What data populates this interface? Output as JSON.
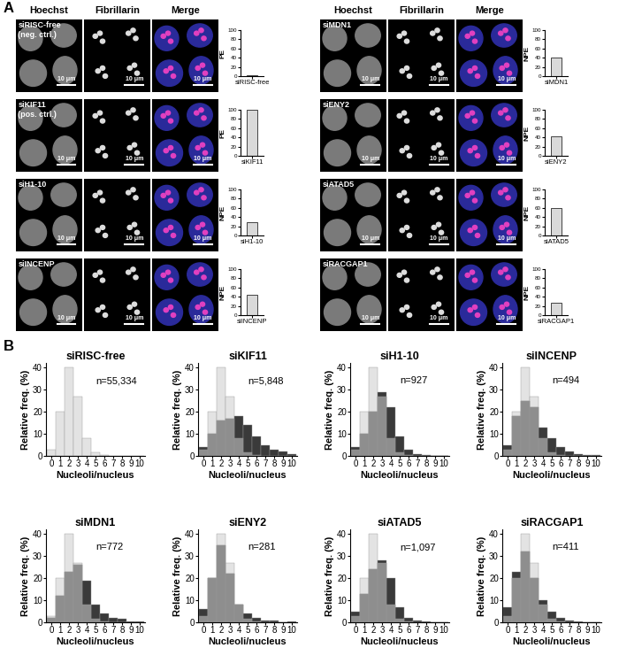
{
  "panel_labels": [
    "A",
    "B"
  ],
  "column_headers": [
    "Hoechst",
    "Fibrillarin",
    "Merge"
  ],
  "scale_bar": "10 μm",
  "image_rows": [
    "siRISC-free\n(neg. ctrl.)",
    "siKIF11\n(pos. ctrl.)",
    "siH1-10",
    "siINCENP",
    "siMDN1",
    "siENY2",
    "siATAD5",
    "siRACGAP1"
  ],
  "chart_data": [
    {
      "type": "bar",
      "categories": [
        "siRISC-free"
      ],
      "values": [
        1
      ],
      "ylabel": "PE",
      "ylim": [
        0,
        100
      ],
      "yticks": [
        0,
        20,
        40,
        60,
        80,
        100
      ],
      "color": "#d9d9d9"
    },
    {
      "type": "bar",
      "categories": [
        "siKIF11"
      ],
      "values": [
        100
      ],
      "ylabel": "PE",
      "ylim": [
        0,
        100
      ],
      "yticks": [
        0,
        20,
        40,
        60,
        80,
        100
      ],
      "color": "#d9d9d9"
    },
    {
      "type": "bar",
      "categories": [
        "siH1-10"
      ],
      "values": [
        28
      ],
      "ylabel": "NPE",
      "ylim": [
        0,
        100
      ],
      "yticks": [
        0,
        20,
        40,
        60,
        80,
        100
      ],
      "color": "#d9d9d9"
    },
    {
      "type": "bar",
      "categories": [
        "siINCENP"
      ],
      "values": [
        45
      ],
      "ylabel": "NPE",
      "ylim": [
        0,
        100
      ],
      "yticks": [
        0,
        20,
        40,
        60,
        80,
        100
      ],
      "color": "#d9d9d9"
    },
    {
      "type": "bar",
      "categories": [
        "siMDN1"
      ],
      "values": [
        40
      ],
      "ylabel": "NPE",
      "ylim": [
        0,
        100
      ],
      "yticks": [
        0,
        20,
        40,
        60,
        80,
        100
      ],
      "color": "#d9d9d9"
    },
    {
      "type": "bar",
      "categories": [
        "siENY2"
      ],
      "values": [
        42
      ],
      "ylabel": "NPE",
      "ylim": [
        0,
        100
      ],
      "yticks": [
        0,
        20,
        40,
        60,
        80,
        100
      ],
      "color": "#d9d9d9"
    },
    {
      "type": "bar",
      "categories": [
        "siATAD5"
      ],
      "values": [
        60
      ],
      "ylabel": "NPE",
      "ylim": [
        0,
        100
      ],
      "yticks": [
        0,
        20,
        40,
        60,
        80,
        100
      ],
      "color": "#d9d9d9"
    },
    {
      "type": "bar",
      "categories": [
        "siRACGAP1"
      ],
      "values": [
        27
      ],
      "ylabel": "NPE",
      "ylim": [
        0,
        100
      ],
      "yticks": [
        0,
        20,
        40,
        60,
        80,
        100
      ],
      "color": "#d9d9d9"
    },
    {
      "type": "bar",
      "title": "siRISC-free",
      "annotation": "n=55,334",
      "xlabel": "Nucleoli/nucleus",
      "ylabel": "Relative freq. (%)",
      "categories": [
        "0",
        "1",
        "2",
        "3",
        "4",
        "5",
        "6",
        "7",
        "8",
        "9",
        "10"
      ],
      "ylim": [
        0,
        42
      ],
      "yticks": [
        0,
        10,
        20,
        30,
        40
      ],
      "series": [
        {
          "name": "siRISC-free",
          "color": "#e3e3e3",
          "values": [
            3,
            20,
            40,
            27,
            8,
            1.5,
            0.3,
            0.1,
            0,
            0,
            0
          ]
        }
      ]
    },
    {
      "type": "bar",
      "title": "siKIF11",
      "annotation": "n=5,848",
      "xlabel": "Nucleoli/nucleus",
      "ylabel": "Relative freq. (%)",
      "categories": [
        "0",
        "1",
        "2",
        "3",
        "4",
        "5",
        "6",
        "7",
        "8",
        "9",
        "10"
      ],
      "ylim": [
        0,
        42
      ],
      "yticks": [
        0,
        10,
        20,
        30,
        40
      ],
      "series": [
        {
          "name": "siRISC-free",
          "color": "#e3e3e3",
          "values": [
            3,
            20,
            40,
            27,
            8,
            1.5,
            0.3,
            0.1,
            0,
            0,
            0
          ]
        },
        {
          "name": "siKIF11",
          "color": "#3a3a3a",
          "values": [
            4,
            10,
            16,
            17,
            18,
            14,
            9,
            5,
            3,
            2,
            1
          ]
        }
      ]
    },
    {
      "type": "bar",
      "title": "siH1-10",
      "annotation": "n=927",
      "xlabel": "Nucleoli/nucleus",
      "ylabel": "Relative freq. (%)",
      "categories": [
        "0",
        "1",
        "2",
        "3",
        "4",
        "5",
        "6",
        "7",
        "8",
        "9",
        "10"
      ],
      "ylim": [
        0,
        42
      ],
      "yticks": [
        0,
        10,
        20,
        30,
        40
      ],
      "series": [
        {
          "name": "siRISC-free",
          "color": "#e3e3e3",
          "values": [
            3,
            20,
            40,
            27,
            8,
            1.5,
            0.3,
            0.1,
            0,
            0,
            0
          ]
        },
        {
          "name": "siH1-10",
          "color": "#3a3a3a",
          "values": [
            4,
            10,
            20,
            29,
            22,
            9,
            3,
            1,
            0.5,
            0,
            0
          ]
        }
      ]
    },
    {
      "type": "bar",
      "title": "siINCENP",
      "annotation": "n=494",
      "xlabel": "Nucleoli/nucleus",
      "ylabel": "Relative freq. (%)",
      "categories": [
        "0",
        "1",
        "2",
        "3",
        "4",
        "5",
        "6",
        "7",
        "8",
        "9",
        "10"
      ],
      "ylim": [
        0,
        42
      ],
      "yticks": [
        0,
        10,
        20,
        30,
        40
      ],
      "series": [
        {
          "name": "siRISC-free",
          "color": "#e3e3e3",
          "values": [
            3,
            20,
            40,
            27,
            8,
            1.5,
            0.3,
            0.1,
            0,
            0,
            0
          ]
        },
        {
          "name": "siINCENP",
          "color": "#3a3a3a",
          "values": [
            5,
            18,
            25,
            22,
            13,
            8,
            4,
            2,
            1,
            0.5,
            0.5
          ]
        }
      ]
    },
    {
      "type": "bar",
      "title": "siMDN1",
      "annotation": "n=772",
      "xlabel": "Nucleoli/nucleus",
      "ylabel": "Relative freq. (%)",
      "categories": [
        "0",
        "1",
        "2",
        "3",
        "4",
        "5",
        "6",
        "7",
        "8",
        "9",
        "10"
      ],
      "ylim": [
        0,
        42
      ],
      "yticks": [
        0,
        10,
        20,
        30,
        40
      ],
      "series": [
        {
          "name": "siRISC-free",
          "color": "#e3e3e3",
          "values": [
            3,
            20,
            40,
            27,
            8,
            1.5,
            0.3,
            0.1,
            0,
            0,
            0
          ]
        },
        {
          "name": "siMDN1",
          "color": "#3a3a3a",
          "values": [
            2,
            12,
            23,
            26,
            19,
            8,
            4,
            2,
            1.5,
            0.5,
            0.5
          ]
        }
      ]
    },
    {
      "type": "bar",
      "title": "siENY2",
      "annotation": "n=281",
      "xlabel": "Nucleoli/nucleus",
      "ylabel": "Relative freq. (%)",
      "categories": [
        "0",
        "1",
        "2",
        "3",
        "4",
        "5",
        "6",
        "7",
        "8",
        "9",
        "10"
      ],
      "ylim": [
        0,
        42
      ],
      "yticks": [
        0,
        10,
        20,
        30,
        40
      ],
      "series": [
        {
          "name": "siRISC-free",
          "color": "#e3e3e3",
          "values": [
            3,
            20,
            40,
            27,
            8,
            1.5,
            0.3,
            0.1,
            0,
            0,
            0
          ]
        },
        {
          "name": "siENY2",
          "color": "#3a3a3a",
          "values": [
            6,
            20,
            35,
            22,
            8,
            4,
            2,
            1,
            1,
            0,
            0.4
          ]
        }
      ]
    },
    {
      "type": "bar",
      "title": "siATAD5",
      "annotation": "n=1,097",
      "xlabel": "Nucleoli/nucleus",
      "ylabel": "Relative freq. (%)",
      "categories": [
        "0",
        "1",
        "2",
        "3",
        "4",
        "5",
        "6",
        "7",
        "8",
        "9",
        "10"
      ],
      "ylim": [
        0,
        42
      ],
      "yticks": [
        0,
        10,
        20,
        30,
        40
      ],
      "series": [
        {
          "name": "siRISC-free",
          "color": "#e3e3e3",
          "values": [
            3,
            20,
            40,
            27,
            8,
            1.5,
            0.3,
            0.1,
            0,
            0,
            0
          ]
        },
        {
          "name": "siATAD5",
          "color": "#3a3a3a",
          "values": [
            5,
            13,
            24,
            28,
            20,
            7,
            2,
            1,
            0.3,
            0,
            0
          ]
        }
      ]
    },
    {
      "type": "bar",
      "title": "siRACGAP1",
      "annotation": "n=411",
      "xlabel": "Nucleoli/nucleus",
      "ylabel": "Relative freq. (%)",
      "categories": [
        "0",
        "1",
        "2",
        "3",
        "4",
        "5",
        "6",
        "7",
        "8",
        "9",
        "10"
      ],
      "ylim": [
        0,
        42
      ],
      "yticks": [
        0,
        10,
        20,
        30,
        40
      ],
      "series": [
        {
          "name": "siRISC-free",
          "color": "#e3e3e3",
          "values": [
            3,
            20,
            40,
            27,
            8,
            1.5,
            0.3,
            0.1,
            0,
            0,
            0
          ]
        },
        {
          "name": "siRACGAP1",
          "color": "#3a3a3a",
          "values": [
            7,
            23,
            32,
            20,
            10,
            5,
            2,
            1,
            0.3,
            0,
            0
          ]
        }
      ]
    }
  ]
}
